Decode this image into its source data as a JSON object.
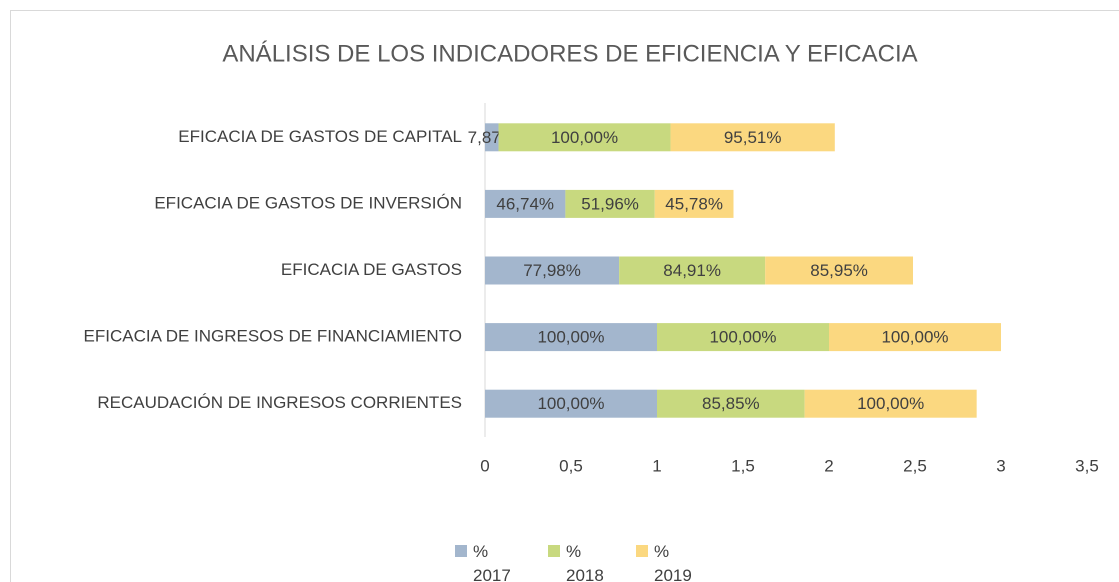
{
  "chart_data": {
    "type": "stacked_bar_horizontal",
    "title": "ANÁLISIS DE LOS INDICADORES DE EFICIENCIA Y EFICACIA",
    "categories": [
      "EFICACIA DE GASTOS DE CAPITAL",
      "EFICACIA DE GASTOS DE INVERSIÓN",
      "EFICACIA DE GASTOS",
      "EFICACIA DE INGRESOS DE FINANCIAMIENTO",
      "RECAUDACIÓN DE INGRESOS CORRIENTES"
    ],
    "series": [
      {
        "name": "% 2017",
        "color": "#a3b6cd",
        "values": [
          0.0787,
          0.4674,
          0.7798,
          1.0,
          1.0
        ],
        "value_labels": [
          "7,87%",
          "46,74%",
          "77,98%",
          "100,00%",
          "100,00%"
        ]
      },
      {
        "name": "% 2018",
        "color": "#c8d97f",
        "values": [
          1.0,
          0.5196,
          0.8491,
          1.0,
          0.8585
        ],
        "value_labels": [
          "100,00%",
          "51,96%",
          "84,91%",
          "100,00%",
          "85,85%"
        ]
      },
      {
        "name": "% 2019",
        "color": "#fbd880",
        "values": [
          0.9551,
          0.4578,
          0.8595,
          1.0,
          1.0
        ],
        "value_labels": [
          "95,51%",
          "45,78%",
          "85,95%",
          "100,00%",
          "100,00%"
        ]
      }
    ],
    "xlim": [
      0,
      3.5
    ],
    "xticks": [
      0,
      {
        "value": 0.5,
        "label": "0,5"
      },
      1,
      {
        "value": 1.5,
        "label": "1,5"
      },
      2,
      {
        "value": 2.5,
        "label": "2,5"
      },
      3,
      {
        "value": 3.5,
        "label": "3,5"
      }
    ],
    "legend": "bottom"
  }
}
